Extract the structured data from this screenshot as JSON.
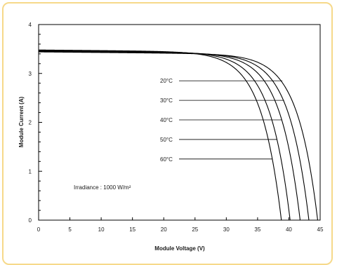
{
  "chart_data": {
    "type": "line",
    "title": "",
    "xlabel": "Module Voltage (V)",
    "ylabel": "Module Current (A)",
    "xlim": [
      0,
      45
    ],
    "ylim": [
      0,
      4
    ],
    "xticks": [
      "0",
      "5",
      "10",
      "15",
      "20",
      "25",
      "30",
      "35",
      "40",
      "45"
    ],
    "yticks": [
      "0",
      "1",
      "2",
      "3",
      "4"
    ],
    "grid": false,
    "annotation": "Irradiance : 1000 W/m²",
    "series": [
      {
        "name": "20°C",
        "Isc": 3.44,
        "Voc": 44.6
      },
      {
        "name": "30°C",
        "Isc": 3.45,
        "Voc": 43.2
      },
      {
        "name": "40°C",
        "Isc": 3.46,
        "Voc": 41.8
      },
      {
        "name": "50°C",
        "Isc": 3.47,
        "Voc": 40.2
      },
      {
        "name": "60°C",
        "Isc": 3.48,
        "Voc": 38.8
      }
    ],
    "label_y": [
      2.85,
      2.45,
      2.05,
      1.65,
      1.25
    ]
  }
}
